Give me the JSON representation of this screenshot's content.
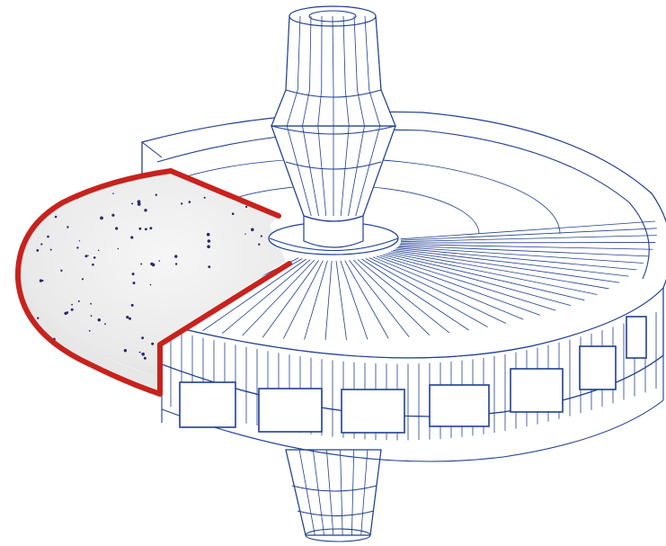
{
  "figure": {
    "subject": "",
    "colors": {
      "wireframe": "#1f3f8f",
      "membrane_outline": "#c8221d",
      "membrane_fill": "#ececec",
      "particles": "#2a2a6a",
      "background": "#ffffff"
    }
  }
}
